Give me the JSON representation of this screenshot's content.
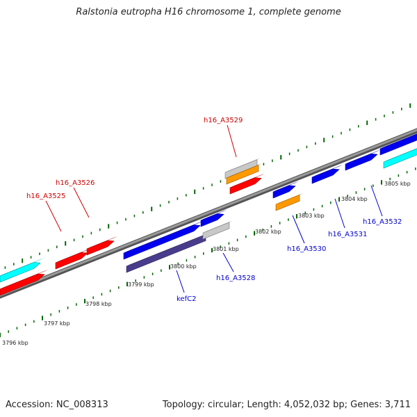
{
  "title": "Ralstonia eutropha H16 chromosome 1, complete genome",
  "accession": "Accession: NC_008313",
  "topology": "Topology: circular; Length: 4,052,032 bp; Genes: 3,711",
  "colors": {
    "red": "#ff0000",
    "blue": "#0000ee",
    "cyan": "#00ffff",
    "orange": "#ff9900",
    "grey": "#c8c8c8",
    "navy": "#4a3c8c",
    "backbone": "#888888",
    "tick_green": "#006600",
    "label_top": "#cc0000",
    "label_bottom": "#0000cc"
  },
  "gene_labels_top": [
    "h16_A3525",
    "h16_A3526",
    "h16_A3529"
  ],
  "gene_labels_bottom": [
    "kefC2",
    "h16_A3528",
    "h16_A3530",
    "h16_A3531",
    "h16_A3532"
  ],
  "kbp_labels": [
    "3796 kbp",
    "3797 kbp",
    "3798 kbp",
    "3799 kbp",
    "3800 kbp",
    "3801 kbp",
    "3802 kbp",
    "3803 kbp",
    "3804 kbp",
    "3805 kbp"
  ]
}
